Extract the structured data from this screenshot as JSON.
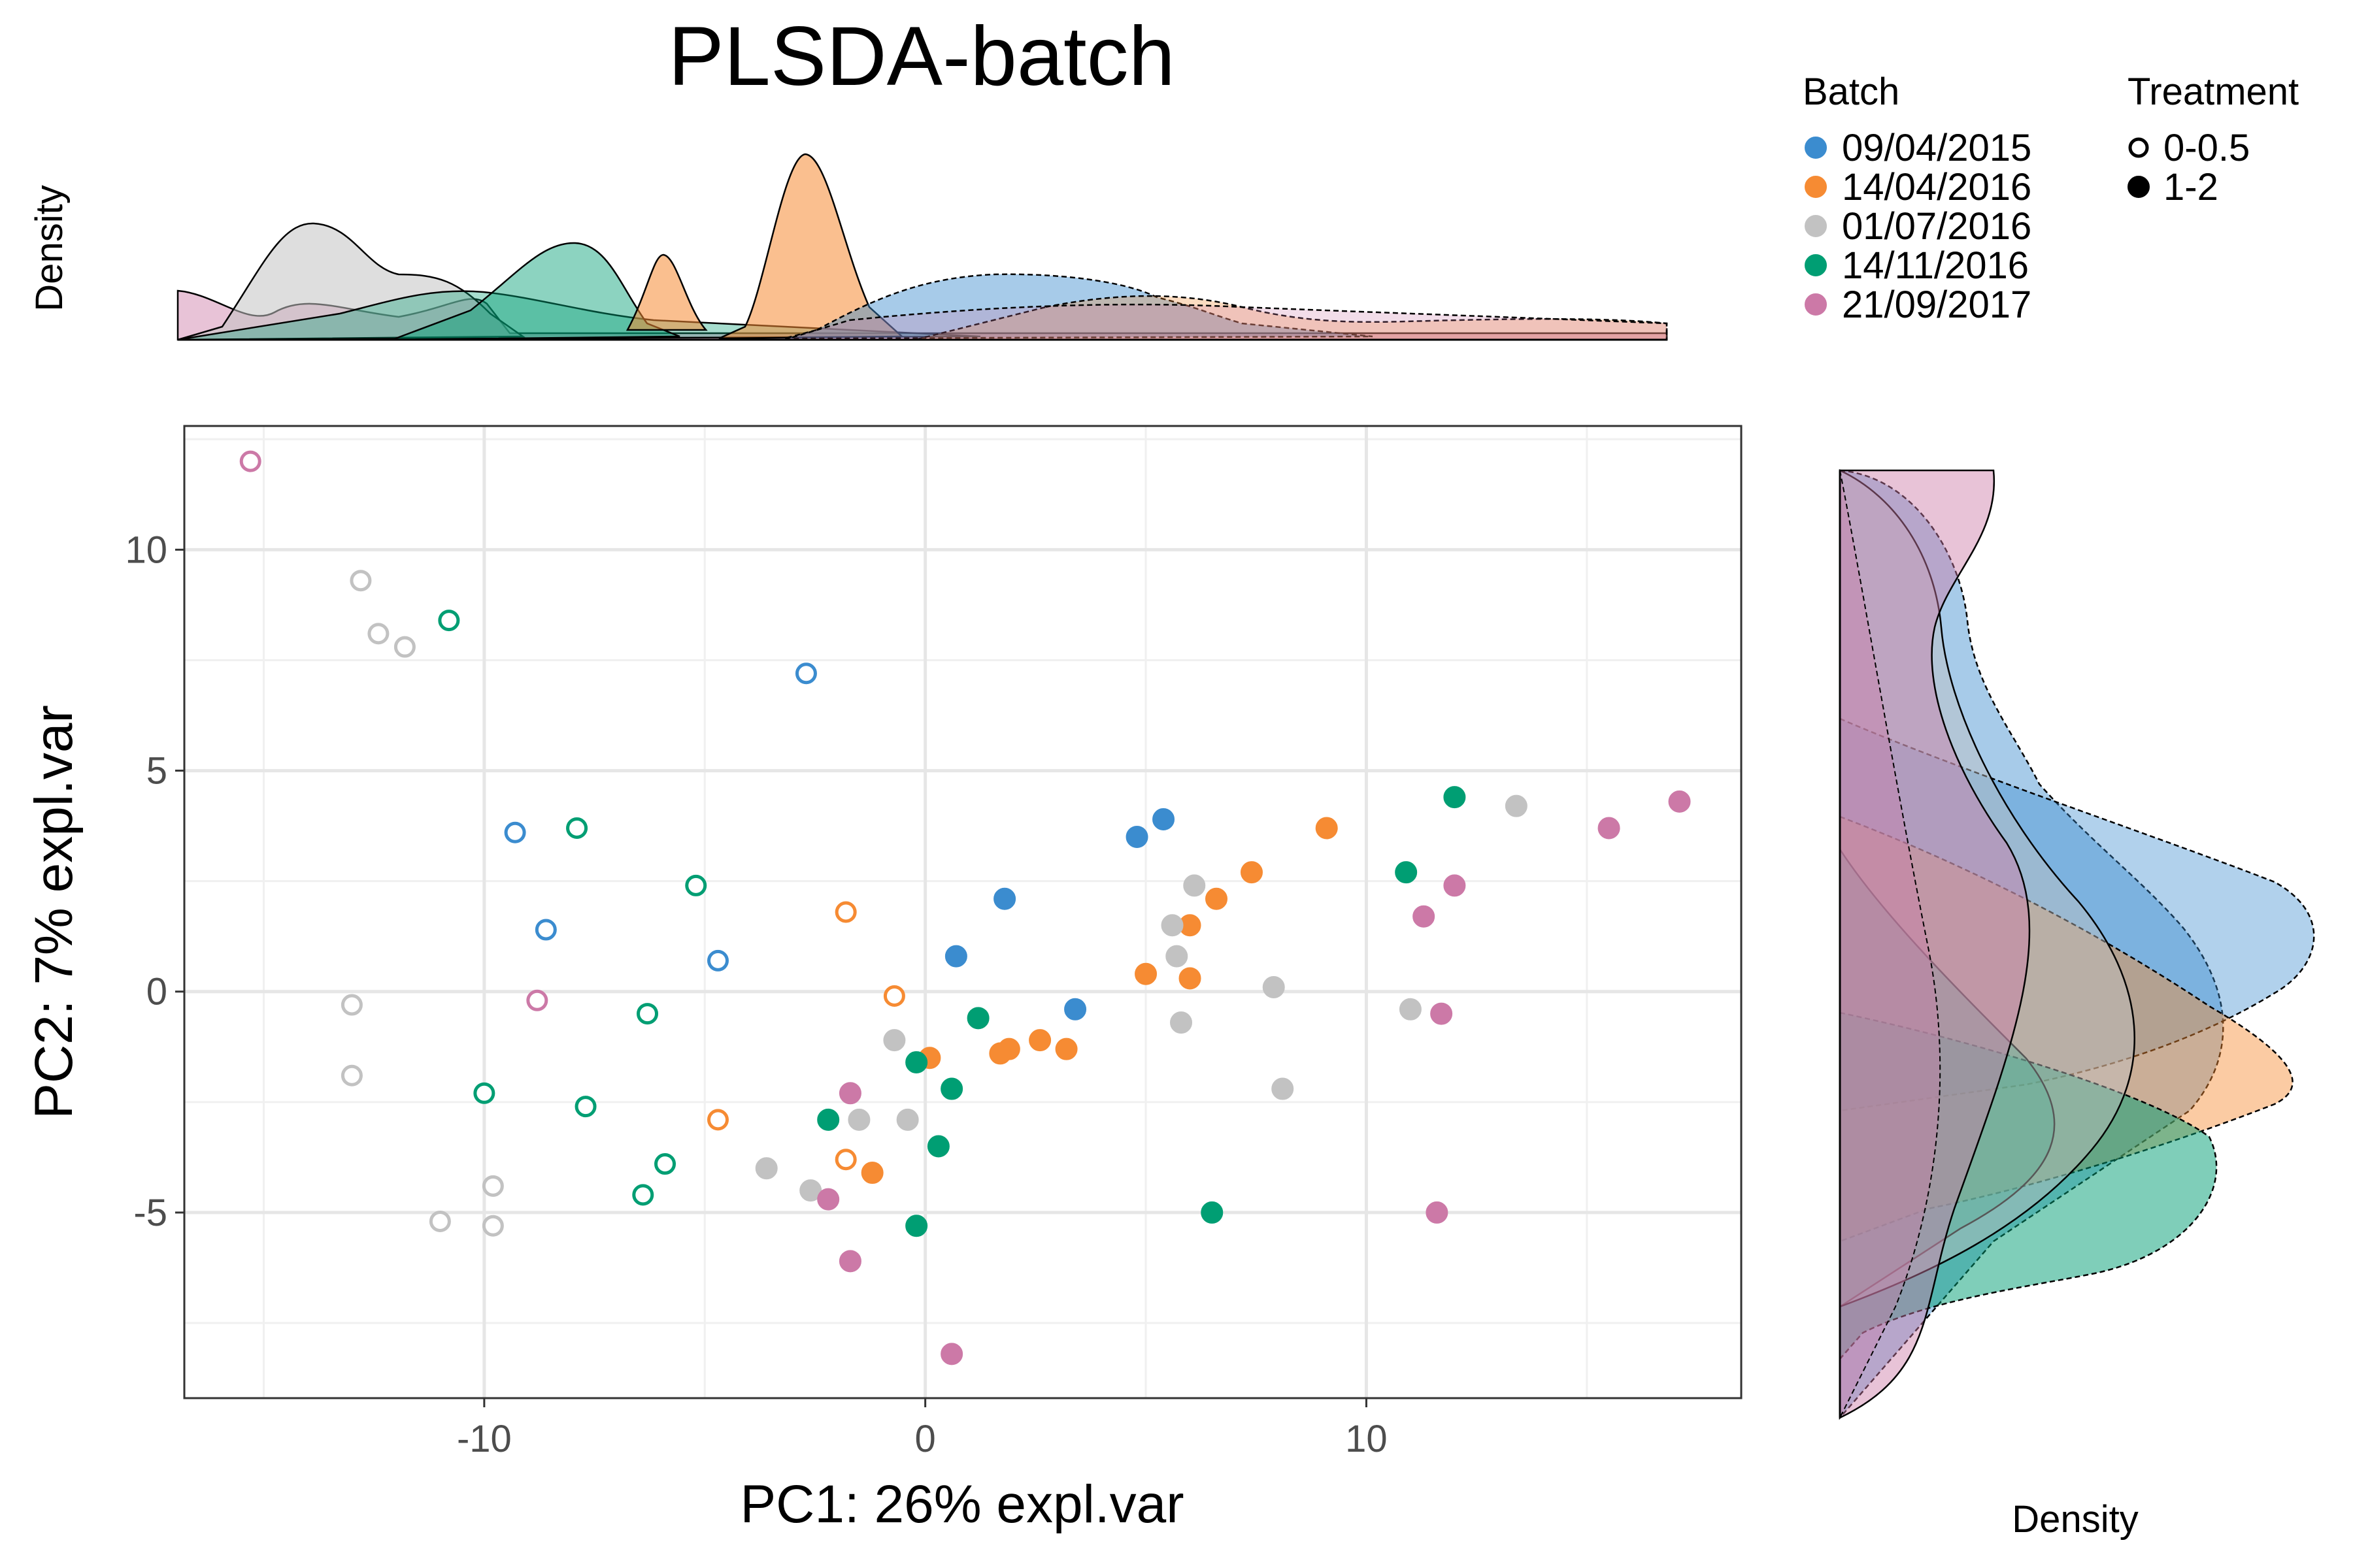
{
  "chart_data": {
    "type": "scatter",
    "title": "PLSDA-batch",
    "xlabel": "PC1: 26% expl.var",
    "ylabel": "PC2: 7% expl.var",
    "xlim": [
      -16.8,
      18.5
    ],
    "ylim": [
      -9.2,
      12.8
    ],
    "xticks": [
      -10,
      0,
      10
    ],
    "xtick_labels": [
      "-10",
      "0",
      "10"
    ],
    "yticks": [
      -5,
      0,
      5,
      10
    ],
    "ytick_labels": [
      "-5",
      "0",
      "5",
      "10"
    ],
    "grid": true,
    "density_top_label": "Density",
    "density_right_label": "Density",
    "legend": {
      "placement": "top-right",
      "batch_title": "Batch",
      "treatment_title": "Treatment",
      "batches": [
        {
          "name": "09/04/2015",
          "color": "#3b8ccf"
        },
        {
          "name": "14/04/2016",
          "color": "#f68b33"
        },
        {
          "name": "01/07/2016",
          "color": "#c2c2c2"
        },
        {
          "name": "14/11/2016",
          "color": "#009e73"
        },
        {
          "name": "21/09/2017",
          "color": "#cc79a7"
        }
      ],
      "treatments": [
        {
          "name": "0-0.5",
          "fill": "open"
        },
        {
          "name": "1-2",
          "fill": "filled"
        }
      ]
    },
    "series": [
      {
        "batch": 0,
        "treatment": 0,
        "points": [
          [
            -2.7,
            7.2
          ],
          [
            -9.3,
            3.6
          ],
          [
            -8.6,
            1.4
          ],
          [
            -4.7,
            0.7
          ]
        ]
      },
      {
        "batch": 0,
        "treatment": 1,
        "points": [
          [
            4.8,
            3.5
          ],
          [
            5.4,
            3.9
          ],
          [
            1.8,
            2.1
          ],
          [
            0.7,
            0.8
          ],
          [
            3.4,
            -0.4
          ]
        ]
      },
      {
        "batch": 1,
        "treatment": 0,
        "points": [
          [
            -1.8,
            1.8
          ],
          [
            -0.7,
            -0.1
          ],
          [
            -4.7,
            -2.9
          ],
          [
            -1.8,
            -3.8
          ]
        ]
      },
      {
        "batch": 1,
        "treatment": 1,
        "points": [
          [
            9.1,
            3.7
          ],
          [
            7.4,
            2.7
          ],
          [
            6.6,
            2.1
          ],
          [
            6.0,
            1.5
          ],
          [
            5.0,
            0.4
          ],
          [
            6.0,
            0.3
          ],
          [
            2.6,
            -1.1
          ],
          [
            3.2,
            -1.3
          ],
          [
            1.9,
            -1.3
          ],
          [
            1.7,
            -1.4
          ],
          [
            0.1,
            -1.5
          ],
          [
            -1.2,
            -4.1
          ]
        ]
      },
      {
        "batch": 2,
        "treatment": 0,
        "points": [
          [
            -12.8,
            9.3
          ],
          [
            -12.4,
            8.1
          ],
          [
            -11.8,
            7.8
          ],
          [
            -13.0,
            -0.3
          ],
          [
            -13.0,
            -1.9
          ],
          [
            -9.8,
            -4.4
          ],
          [
            -11.0,
            -5.2
          ],
          [
            -9.8,
            -5.3
          ]
        ]
      },
      {
        "batch": 2,
        "treatment": 1,
        "points": [
          [
            13.4,
            4.2
          ],
          [
            6.1,
            2.4
          ],
          [
            5.6,
            1.5
          ],
          [
            5.7,
            0.8
          ],
          [
            7.9,
            0.1
          ],
          [
            11.0,
            -0.4
          ],
          [
            5.8,
            -0.7
          ],
          [
            -0.7,
            -1.1
          ],
          [
            8.1,
            -2.2
          ],
          [
            -1.5,
            -2.9
          ],
          [
            -0.4,
            -2.9
          ],
          [
            -3.6,
            -4.0
          ],
          [
            -2.6,
            -4.5
          ]
        ]
      },
      {
        "batch": 3,
        "treatment": 0,
        "points": [
          [
            -10.8,
            8.4
          ],
          [
            -7.9,
            3.7
          ],
          [
            -5.2,
            2.4
          ],
          [
            -6.3,
            -0.5
          ],
          [
            -10.0,
            -2.3
          ],
          [
            -7.7,
            -2.6
          ],
          [
            -5.9,
            -3.9
          ],
          [
            -6.4,
            -4.6
          ]
        ]
      },
      {
        "batch": 3,
        "treatment": 1,
        "points": [
          [
            12.0,
            4.4
          ],
          [
            10.9,
            2.7
          ],
          [
            1.2,
            -0.6
          ],
          [
            -0.2,
            -1.6
          ],
          [
            0.6,
            -2.2
          ],
          [
            -2.2,
            -2.9
          ],
          [
            0.3,
            -3.5
          ],
          [
            -0.2,
            -5.3
          ],
          [
            6.5,
            -5.0
          ]
        ]
      },
      {
        "batch": 4,
        "treatment": 0,
        "points": [
          [
            -15.3,
            12.0
          ],
          [
            -8.8,
            -0.2
          ]
        ]
      },
      {
        "batch": 4,
        "treatment": 1,
        "points": [
          [
            17.1,
            4.3
          ],
          [
            15.5,
            3.7
          ],
          [
            12.0,
            2.4
          ],
          [
            11.3,
            1.7
          ],
          [
            11.7,
            -0.5
          ],
          [
            -1.7,
            -2.3
          ],
          [
            -2.2,
            -4.7
          ],
          [
            -1.7,
            -6.1
          ],
          [
            0.6,
            -8.2
          ],
          [
            11.6,
            -5.0
          ]
        ]
      }
    ]
  }
}
